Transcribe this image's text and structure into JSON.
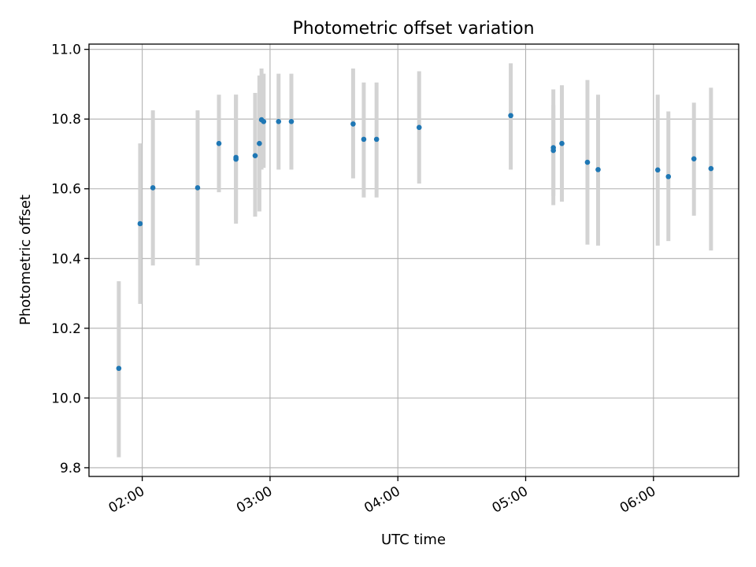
{
  "chart_data": {
    "type": "scatter",
    "title": "Photometric offset variation",
    "xlabel": "UTC time",
    "ylabel": "Photometric offset",
    "xlim": [
      "01:35",
      "06:40"
    ],
    "ylim": [
      9.775,
      11.015
    ],
    "grid": true,
    "xticks": [
      "02:00",
      "03:00",
      "04:00",
      "05:00",
      "06:00"
    ],
    "yticks": [
      "9.8",
      "10.0",
      "10.2",
      "10.4",
      "10.6",
      "10.8",
      "11.0"
    ],
    "colors": {
      "points": "#1f77b4",
      "errorbars": "#d3d3d3",
      "grid": "#b0b0b0"
    },
    "points": [
      {
        "x": "01:49",
        "y": 10.085,
        "ylow": 9.83,
        "yhigh": 10.335
      },
      {
        "x": "01:59",
        "y": 10.5,
        "ylow": 10.27,
        "yhigh": 10.73
      },
      {
        "x": "02:05",
        "y": 10.603,
        "ylow": 10.38,
        "yhigh": 10.825
      },
      {
        "x": "02:26",
        "y": 10.603,
        "ylow": 10.38,
        "yhigh": 10.825
      },
      {
        "x": "02:36",
        "y": 10.73,
        "ylow": 10.59,
        "yhigh": 10.87
      },
      {
        "x": "02:44",
        "y": 10.685,
        "ylow": 10.5,
        "yhigh": 10.87
      },
      {
        "x": "02:44",
        "y": 10.69,
        "ylow": 10.51,
        "yhigh": 10.87
      },
      {
        "x": "02:53",
        "y": 10.695,
        "ylow": 10.52,
        "yhigh": 10.875
      },
      {
        "x": "02:55",
        "y": 10.73,
        "ylow": 10.535,
        "yhigh": 10.925
      },
      {
        "x": "02:56",
        "y": 10.798,
        "ylow": 10.655,
        "yhigh": 10.945
      },
      {
        "x": "02:57",
        "y": 10.793,
        "ylow": 10.66,
        "yhigh": 10.93
      },
      {
        "x": "03:04",
        "y": 10.793,
        "ylow": 10.655,
        "yhigh": 10.93
      },
      {
        "x": "03:10",
        "y": 10.793,
        "ylow": 10.655,
        "yhigh": 10.93
      },
      {
        "x": "03:39",
        "y": 10.786,
        "ylow": 10.63,
        "yhigh": 10.945
      },
      {
        "x": "03:44",
        "y": 10.742,
        "ylow": 10.575,
        "yhigh": 10.905
      },
      {
        "x": "03:50",
        "y": 10.742,
        "ylow": 10.575,
        "yhigh": 10.905
      },
      {
        "x": "04:10",
        "y": 10.776,
        "ylow": 10.615,
        "yhigh": 10.937
      },
      {
        "x": "04:53",
        "y": 10.81,
        "ylow": 10.655,
        "yhigh": 10.96
      },
      {
        "x": "05:13",
        "y": 10.718,
        "ylow": 10.553,
        "yhigh": 10.885
      },
      {
        "x": "05:13",
        "y": 10.71,
        "ylow": 10.58,
        "yhigh": 10.84
      },
      {
        "x": "05:17",
        "y": 10.73,
        "ylow": 10.563,
        "yhigh": 10.897
      },
      {
        "x": "05:29",
        "y": 10.676,
        "ylow": 10.44,
        "yhigh": 10.912
      },
      {
        "x": "05:34",
        "y": 10.655,
        "ylow": 10.437,
        "yhigh": 10.87
      },
      {
        "x": "06:02",
        "y": 10.654,
        "ylow": 10.437,
        "yhigh": 10.87
      },
      {
        "x": "06:07",
        "y": 10.635,
        "ylow": 10.45,
        "yhigh": 10.822
      },
      {
        "x": "06:19",
        "y": 10.686,
        "ylow": 10.523,
        "yhigh": 10.847
      },
      {
        "x": "06:27",
        "y": 10.658,
        "ylow": 10.423,
        "yhigh": 10.89
      }
    ]
  }
}
